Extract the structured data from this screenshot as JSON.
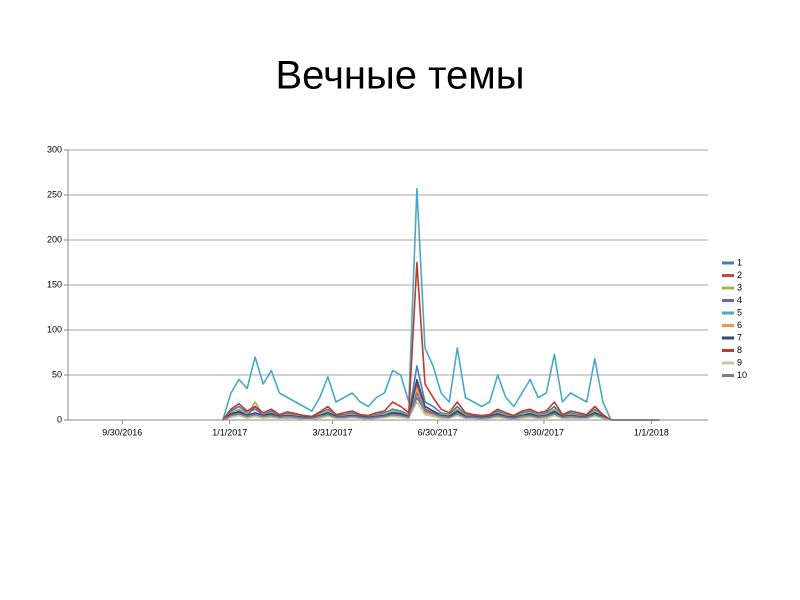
{
  "chart_data": {
    "type": "line",
    "title": "Вечные темы",
    "x": [
      "12/26/2016",
      "1/2/2017",
      "1/9/2017",
      "1/16/2017",
      "1/23/2017",
      "1/30/2017",
      "2/6/2017",
      "2/13/2017",
      "2/20/2017",
      "2/27/2017",
      "3/6/2017",
      "3/13/2017",
      "3/20/2017",
      "3/27/2017",
      "4/3/2017",
      "4/10/2017",
      "4/17/2017",
      "4/24/2017",
      "5/1/2017",
      "5/8/2017",
      "5/15/2017",
      "5/22/2017",
      "5/29/2017",
      "6/5/2017",
      "6/12/2017",
      "6/19/2017",
      "6/26/2017",
      "7/3/2017",
      "7/10/2017",
      "7/17/2017",
      "7/24/2017",
      "7/31/2017",
      "8/7/2017",
      "8/14/2017",
      "8/21/2017",
      "8/28/2017",
      "9/4/2017",
      "9/11/2017",
      "9/18/2017",
      "9/25/2017",
      "10/2/2017",
      "10/9/2017",
      "10/16/2017",
      "10/23/2017",
      "10/30/2017",
      "11/6/2017",
      "11/13/2017",
      "11/20/2017",
      "11/27/2017",
      "12/4/2017",
      "12/11/2017",
      "12/18/2017",
      "12/25/2017",
      "1/1/2018",
      "1/8/2018"
    ],
    "series": [
      {
        "name": "1",
        "color": "#4a7ebb",
        "values": [
          0,
          10,
          15,
          8,
          12,
          6,
          10,
          5,
          8,
          6,
          4,
          3,
          8,
          12,
          5,
          6,
          8,
          5,
          4,
          6,
          8,
          12,
          10,
          6,
          60,
          20,
          15,
          8,
          6,
          15,
          6,
          5,
          4,
          5,
          10,
          6,
          4,
          8,
          10,
          6,
          8,
          15,
          5,
          8,
          6,
          5,
          12,
          5,
          0,
          0,
          0,
          0,
          0,
          0,
          0
        ]
      },
      {
        "name": "2",
        "color": "#be4b48",
        "values": [
          0,
          5,
          8,
          4,
          6,
          3,
          5,
          3,
          4,
          3,
          2,
          2,
          4,
          6,
          3,
          3,
          4,
          3,
          2,
          3,
          4,
          6,
          5,
          3,
          40,
          12,
          8,
          4,
          3,
          8,
          3,
          3,
          2,
          3,
          5,
          3,
          2,
          4,
          5,
          3,
          4,
          8,
          3,
          4,
          3,
          3,
          6,
          3,
          0,
          0,
          0,
          0,
          0,
          0,
          0
        ]
      },
      {
        "name": "3",
        "color": "#98b954",
        "values": [
          0,
          8,
          12,
          6,
          20,
          5,
          8,
          4,
          6,
          5,
          3,
          3,
          6,
          10,
          4,
          5,
          6,
          4,
          3,
          5,
          6,
          10,
          8,
          5,
          30,
          15,
          10,
          6,
          5,
          12,
          5,
          4,
          3,
          4,
          8,
          5,
          3,
          6,
          8,
          5,
          6,
          12,
          4,
          6,
          5,
          4,
          10,
          4,
          0,
          0,
          0,
          0,
          0,
          0,
          0
        ]
      },
      {
        "name": "4",
        "color": "#7d60a0",
        "values": [
          0,
          6,
          10,
          5,
          15,
          4,
          6,
          3,
          5,
          4,
          3,
          2,
          5,
          8,
          3,
          4,
          5,
          3,
          3,
          4,
          5,
          8,
          6,
          4,
          25,
          10,
          8,
          5,
          4,
          10,
          4,
          3,
          3,
          3,
          6,
          4,
          3,
          5,
          6,
          4,
          5,
          10,
          3,
          5,
          4,
          3,
          8,
          3,
          0,
          0,
          0,
          0,
          0,
          0,
          0
        ]
      },
      {
        "name": "5",
        "color": "#46aac5",
        "values": [
          0,
          30,
          45,
          35,
          70,
          40,
          55,
          30,
          25,
          20,
          15,
          10,
          25,
          48,
          20,
          25,
          30,
          20,
          15,
          25,
          30,
          55,
          50,
          20,
          257,
          80,
          60,
          30,
          20,
          80,
          25,
          20,
          15,
          20,
          50,
          25,
          15,
          30,
          45,
          25,
          30,
          73,
          20,
          30,
          25,
          20,
          68,
          20,
          0,
          0,
          0,
          0,
          0,
          0,
          0
        ]
      },
      {
        "name": "6",
        "color": "#f79646",
        "values": [
          0,
          4,
          6,
          3,
          5,
          3,
          4,
          2,
          3,
          3,
          2,
          2,
          3,
          5,
          2,
          3,
          3,
          2,
          2,
          3,
          3,
          5,
          4,
          3,
          35,
          8,
          6,
          3,
          3,
          6,
          3,
          2,
          2,
          2,
          4,
          3,
          2,
          3,
          4,
          3,
          3,
          6,
          2,
          3,
          3,
          2,
          5,
          2,
          0,
          0,
          0,
          0,
          0,
          0,
          0
        ]
      },
      {
        "name": "7",
        "color": "#2c4d75",
        "values": [
          0,
          7,
          9,
          5,
          8,
          5,
          7,
          4,
          5,
          4,
          3,
          3,
          5,
          8,
          4,
          4,
          5,
          4,
          3,
          4,
          5,
          8,
          7,
          4,
          45,
          15,
          10,
          5,
          4,
          10,
          4,
          4,
          3,
          4,
          7,
          4,
          3,
          5,
          7,
          4,
          5,
          9,
          4,
          5,
          4,
          4,
          8,
          4,
          0,
          0,
          0,
          0,
          0,
          0,
          0
        ]
      },
      {
        "name": "8",
        "color": "#c0392b",
        "values": [
          0,
          12,
          18,
          10,
          15,
          8,
          12,
          6,
          9,
          7,
          5,
          4,
          9,
          15,
          6,
          8,
          10,
          6,
          5,
          8,
          10,
          20,
          15,
          8,
          175,
          40,
          25,
          12,
          8,
          20,
          8,
          6,
          5,
          6,
          12,
          8,
          5,
          10,
          12,
          8,
          10,
          20,
          6,
          10,
          8,
          6,
          15,
          6,
          0,
          0,
          0,
          0,
          0,
          0,
          0
        ]
      },
      {
        "name": "9",
        "color": "#b5c99a",
        "values": [
          0,
          3,
          5,
          2,
          4,
          2,
          3,
          2,
          2,
          2,
          1,
          1,
          2,
          4,
          2,
          2,
          3,
          2,
          1,
          2,
          3,
          4,
          3,
          2,
          20,
          6,
          4,
          2,
          2,
          5,
          2,
          2,
          1,
          2,
          3,
          2,
          1,
          2,
          3,
          2,
          2,
          5,
          2,
          2,
          2,
          2,
          4,
          2,
          0,
          0,
          0,
          0,
          0,
          0,
          0
        ]
      },
      {
        "name": "10",
        "color": "#7f7a9a",
        "values": [
          0,
          5,
          7,
          4,
          6,
          4,
          5,
          3,
          4,
          3,
          2,
          2,
          4,
          6,
          3,
          3,
          4,
          3,
          2,
          3,
          4,
          6,
          5,
          3,
          30,
          10,
          7,
          4,
          3,
          7,
          3,
          3,
          2,
          3,
          5,
          3,
          2,
          4,
          5,
          3,
          4,
          7,
          3,
          4,
          3,
          3,
          6,
          3,
          0,
          0,
          0,
          0,
          0,
          0,
          0
        ]
      }
    ],
    "xlim": [
      "8/14/2016",
      "2/19/2018"
    ],
    "xticks": [
      "9/30/2016",
      "1/1/2017",
      "3/31/2017",
      "6/30/2017",
      "9/30/2017",
      "1/1/2018"
    ],
    "ylim": [
      0,
      300
    ],
    "yticks": [
      0,
      50,
      100,
      150,
      200,
      250,
      300
    ],
    "grid": true,
    "legend": "right"
  }
}
